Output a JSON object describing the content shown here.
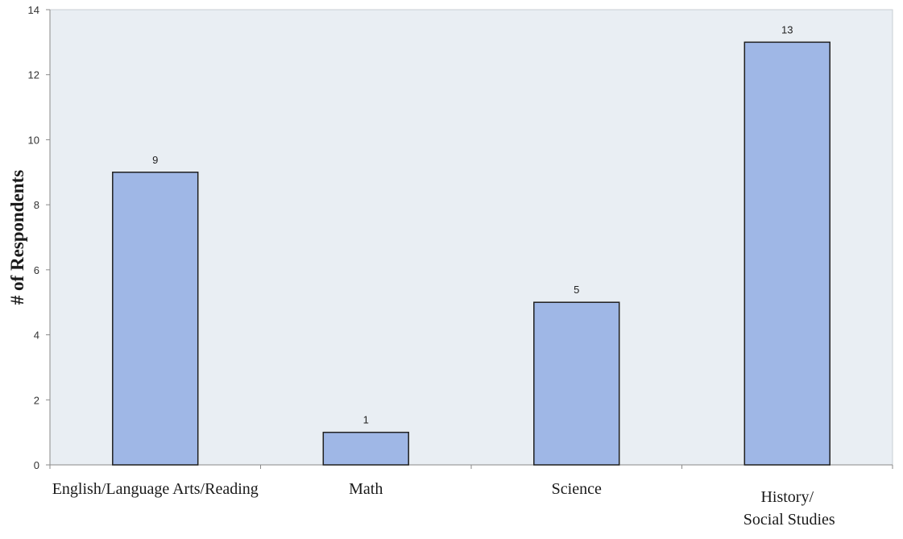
{
  "chart_data": {
    "type": "bar",
    "title": "",
    "xlabel": "",
    "ylabel": "# of Respondents",
    "categories": [
      [
        "English/Language Arts/Reading"
      ],
      [
        "Math"
      ],
      [
        "Science"
      ],
      [
        "History/",
        " Social Studies"
      ]
    ],
    "values": [
      9,
      1,
      5,
      13
    ],
    "ylim": [
      0,
      14
    ],
    "yticks": [
      0,
      2,
      4,
      6,
      8,
      10,
      12,
      14
    ],
    "grid": false,
    "legend": "none",
    "data_labels": true
  },
  "colors": {
    "plot_background": "#e9eef3",
    "bar_fill": "#9fb7e6",
    "bar_stroke": "#1f1f1f",
    "axis_line": "#8a8a8a"
  }
}
